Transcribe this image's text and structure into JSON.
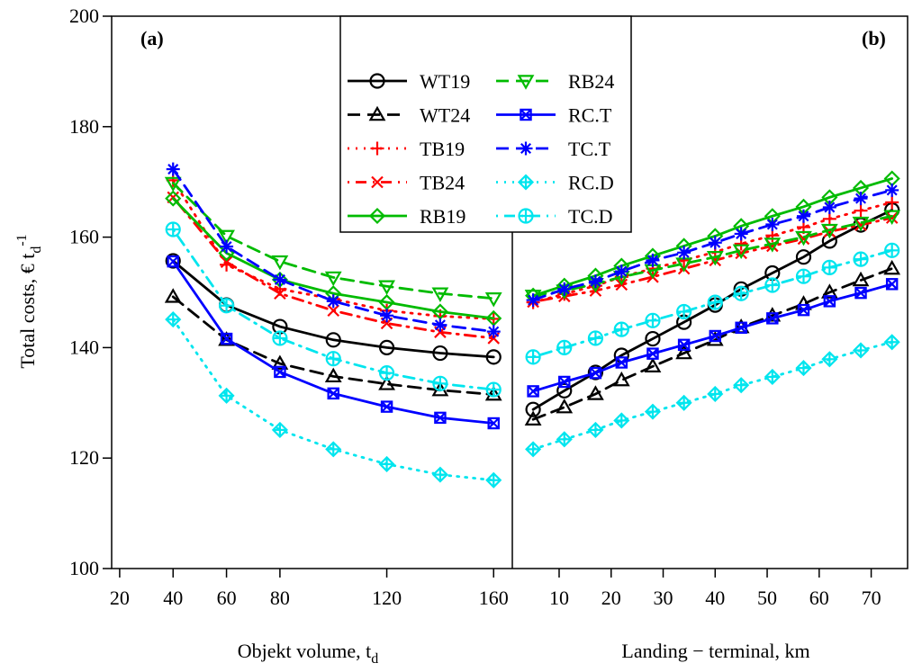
{
  "chart_data": {
    "type": "line",
    "ylabel": "Total costs, € t",
    "ylabel_sub": "d",
    "ylabel_sup": "-1",
    "ylim": [
      100,
      200
    ],
    "y_ticks": [
      100,
      120,
      140,
      160,
      180,
      200
    ],
    "panels": [
      {
        "id": "a",
        "label": "(a)",
        "xlabel": "Objekt volume, t",
        "xlabel_sub": "d",
        "xlim": [
          17,
          167
        ],
        "x_ticks": [
          20,
          40,
          60,
          80,
          120,
          160
        ],
        "x": [
          40,
          60,
          80,
          100,
          120,
          140,
          160
        ],
        "series": [
          {
            "name": "WT19",
            "values": [
              155.7,
              147.7,
              143.8,
              141.4,
              140.0,
              139.0,
              138.3
            ]
          },
          {
            "name": "WT24",
            "values": [
              149.2,
              141.4,
              137.1,
              134.8,
              133.4,
              132.3,
              131.5
            ]
          },
          {
            "name": "TB19",
            "values": [
              170.3,
              155.0,
              150.6,
              148.8,
              146.7,
              145.7,
              145.2
            ]
          },
          {
            "name": "TB24",
            "values": [
              167.2,
              155.5,
              149.8,
              146.7,
              144.4,
              142.8,
              141.7
            ]
          },
          {
            "name": "RB19",
            "values": [
              167.0,
              157.1,
              152.3,
              149.8,
              148.2,
              146.5,
              145.3
            ]
          },
          {
            "name": "RB24",
            "values": [
              169.8,
              160.2,
              155.6,
              152.7,
              151.1,
              149.8,
              148.9
            ]
          },
          {
            "name": "RC.T",
            "values": [
              155.6,
              141.6,
              135.6,
              131.7,
              129.3,
              127.3,
              126.3
            ]
          },
          {
            "name": "TC.T",
            "values": [
              172.3,
              158.3,
              152.3,
              148.4,
              145.8,
              144.1,
              142.9
            ]
          },
          {
            "name": "RC.D",
            "values": [
              145.1,
              131.3,
              125.1,
              121.6,
              118.9,
              117.0,
              116.0
            ]
          },
          {
            "name": "TC.D",
            "values": [
              161.4,
              147.6,
              141.7,
              138.0,
              135.4,
              133.5,
              132.4
            ]
          }
        ]
      },
      {
        "id": "b",
        "label": "(b)",
        "xlabel": "Landing − terminal, km",
        "xlim": [
          1,
          77
        ],
        "x_ticks": [
          10,
          20,
          30,
          40,
          50,
          60,
          70
        ],
        "x": [
          5,
          11,
          17,
          22,
          28,
          34,
          40,
          45,
          51,
          57,
          62,
          68,
          74
        ],
        "series": [
          {
            "name": "WT19",
            "values": [
              128.8,
              132.2,
              135.5,
              138.6,
              141.6,
              144.6,
              147.7,
              150.6,
              153.5,
              156.4,
              159.3,
              162.2,
              164.9
            ]
          },
          {
            "name": "WT24",
            "values": [
              127.0,
              129.2,
              131.6,
              134.1,
              136.6,
              139.0,
              141.4,
              143.7,
              145.8,
              147.9,
              150.0,
              152.2,
              154.3
            ]
          },
          {
            "name": "TB19",
            "values": [
              148.2,
              149.7,
              151.2,
              152.8,
              154.3,
              155.8,
              157.3,
              158.8,
              160.3,
              161.8,
              163.3,
              164.8,
              166.3
            ]
          },
          {
            "name": "TB24",
            "values": [
              148.3,
              149.3,
              150.3,
              151.4,
              152.8,
              154.3,
              155.8,
              157.1,
              158.4,
              159.7,
              161.0,
              162.2,
              163.5
            ]
          },
          {
            "name": "RB19",
            "values": [
              149.4,
              151.2,
              153.0,
              154.8,
              156.6,
              158.4,
              160.2,
              162.0,
              163.8,
              165.5,
              167.2,
              168.9,
              170.6
            ]
          },
          {
            "name": "RB24",
            "values": [
              149.4,
              150.3,
              151.5,
              152.8,
              154.0,
              155.2,
              156.4,
              157.6,
              158.8,
              160.0,
              161.3,
              162.6,
              163.8
            ]
          },
          {
            "name": "RC.T",
            "values": [
              132.1,
              133.8,
              135.4,
              137.3,
              138.9,
              140.5,
              142.1,
              143.6,
              145.3,
              146.8,
              148.4,
              149.9,
              151.5
            ]
          },
          {
            "name": "TC.T",
            "values": [
              148.6,
              150.6,
              152.0,
              153.8,
              155.8,
              157.2,
              159.0,
              160.6,
              162.3,
              163.8,
              165.4,
              167.0,
              168.5
            ]
          },
          {
            "name": "RC.D",
            "values": [
              121.6,
              123.4,
              125.1,
              126.8,
              128.4,
              130.0,
              131.6,
              133.2,
              134.7,
              136.3,
              137.9,
              139.5,
              141.0
            ]
          },
          {
            "name": "TC.D",
            "values": [
              138.3,
              140.0,
              141.7,
              143.3,
              144.9,
              146.5,
              148.2,
              149.8,
              151.3,
              152.9,
              154.5,
              156.0,
              157.6
            ]
          }
        ]
      }
    ],
    "series_styles": [
      {
        "name": "WT19",
        "color": "#000000",
        "dash": "solid",
        "marker": "circle"
      },
      {
        "name": "WT24",
        "color": "#000000",
        "dash": "dashed",
        "marker": "triangle"
      },
      {
        "name": "TB19",
        "color": "#ff0000",
        "dash": "dotted",
        "marker": "plus"
      },
      {
        "name": "TB24",
        "color": "#ff0000",
        "dash": "dashdot",
        "marker": "cross"
      },
      {
        "name": "RB19",
        "color": "#00bb00",
        "dash": "solid",
        "marker": "diamond"
      },
      {
        "name": "RB24",
        "color": "#00bb00",
        "dash": "dashed",
        "marker": "triangle-down"
      },
      {
        "name": "RC.T",
        "color": "#0000ff",
        "dash": "solid",
        "marker": "square-x"
      },
      {
        "name": "TC.T",
        "color": "#0000ff",
        "dash": "dashed",
        "marker": "asterisk"
      },
      {
        "name": "RC.D",
        "color": "#00e5ee",
        "dash": "dotted",
        "marker": "diamond-plus"
      },
      {
        "name": "TC.D",
        "color": "#00e5ee",
        "dash": "dashdot",
        "marker": "circle-plus"
      }
    ],
    "legend_position": "top-center"
  }
}
